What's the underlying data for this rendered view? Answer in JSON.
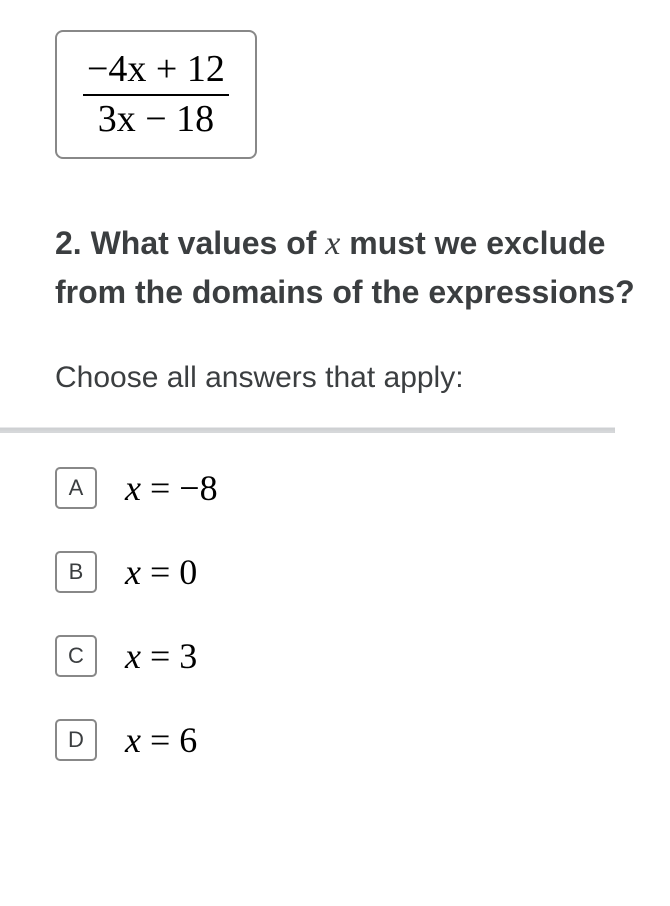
{
  "expression": {
    "numerator": "−4x + 12",
    "denominator": "3x − 18",
    "box_border_color": "#888888",
    "font_family": "Times New Roman"
  },
  "question": {
    "number": "2.",
    "text_before_x": "What values of ",
    "variable": "x",
    "text_after_x": " must we exclude from the domains of the expressions?",
    "font_size": 32,
    "color": "#3b3e40"
  },
  "instruction": {
    "text": "Choose all answers that apply:",
    "font_size": 30
  },
  "options": [
    {
      "letter": "A",
      "var": "x",
      "eq": " = ",
      "value": "−8"
    },
    {
      "letter": "B",
      "var": "x",
      "eq": " = ",
      "value": "0"
    },
    {
      "letter": "C",
      "var": "x",
      "eq": " = ",
      "value": "3"
    },
    {
      "letter": "D",
      "var": "x",
      "eq": " = ",
      "value": "6"
    }
  ],
  "styling": {
    "background": "#ffffff",
    "letter_box_border": "#888888",
    "divider_color": "#d6d8da"
  }
}
